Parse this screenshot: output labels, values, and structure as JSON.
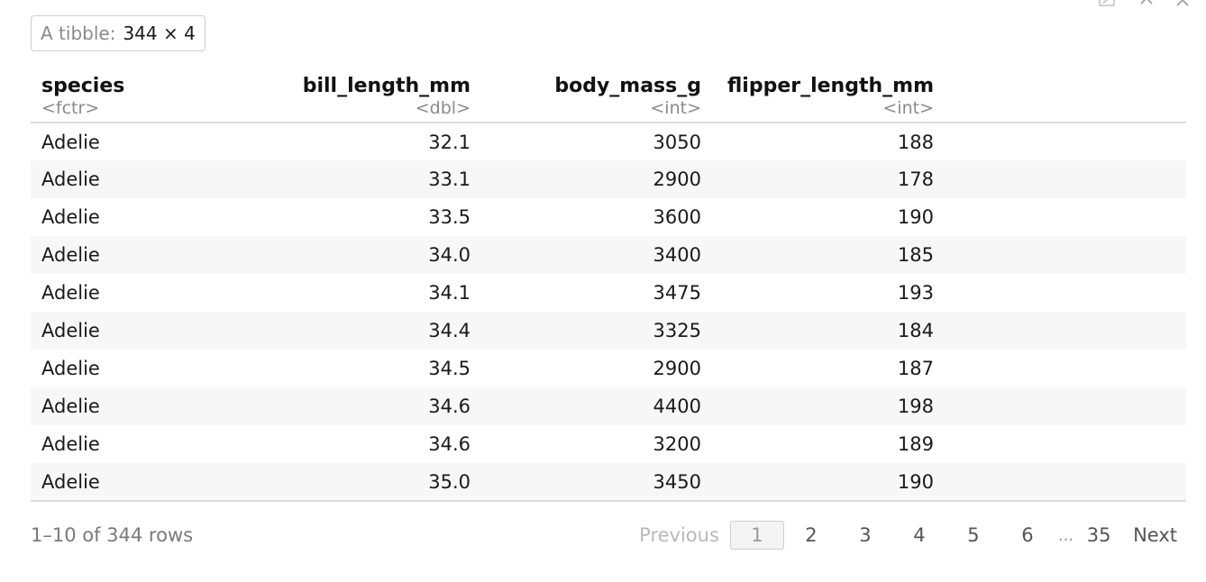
{
  "badge": {
    "label": "A tibble:",
    "dims": "344 × 4"
  },
  "columns": [
    {
      "name": "species",
      "type": "<fctr>",
      "align": "l"
    },
    {
      "name": "bill_length_mm",
      "type": "<dbl>",
      "align": "r"
    },
    {
      "name": "body_mass_g",
      "type": "<int>",
      "align": "r"
    },
    {
      "name": "flipper_length_mm",
      "type": "<int>",
      "align": "r"
    }
  ],
  "rows": [
    [
      "Adelie",
      "32.1",
      "3050",
      "188"
    ],
    [
      "Adelie",
      "33.1",
      "2900",
      "178"
    ],
    [
      "Adelie",
      "33.5",
      "3600",
      "190"
    ],
    [
      "Adelie",
      "34.0",
      "3400",
      "185"
    ],
    [
      "Adelie",
      "34.1",
      "3475",
      "193"
    ],
    [
      "Adelie",
      "34.4",
      "3325",
      "184"
    ],
    [
      "Adelie",
      "34.5",
      "2900",
      "187"
    ],
    [
      "Adelie",
      "34.6",
      "4400",
      "198"
    ],
    [
      "Adelie",
      "34.6",
      "3200",
      "189"
    ],
    [
      "Adelie",
      "35.0",
      "3450",
      "190"
    ]
  ],
  "footer": {
    "row_info": "1–10 of 344 rows",
    "previous_label": "Previous",
    "next_label": "Next",
    "pages": [
      "1",
      "2",
      "3",
      "4",
      "5",
      "6"
    ],
    "current_page": "1",
    "ellipsis": "...",
    "last_page": "35"
  },
  "chunk_controls": {
    "icons": [
      "expand-icon",
      "collapse-icon",
      "close-icon"
    ]
  }
}
